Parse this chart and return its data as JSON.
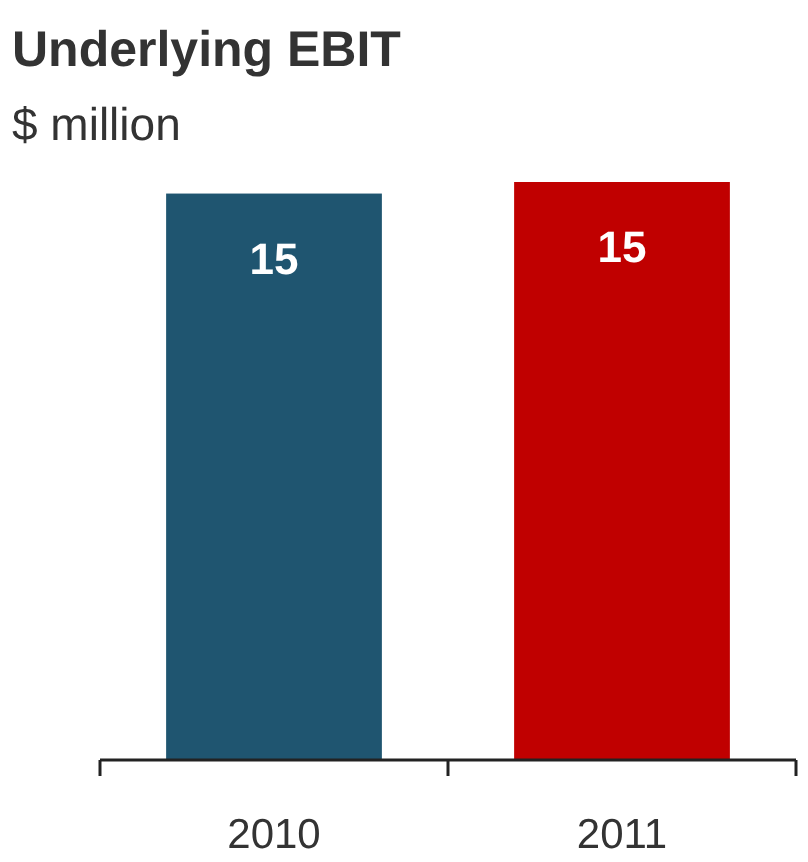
{
  "chart_data": {
    "type": "bar",
    "title": "Underlying EBIT",
    "subtitle": "$ million",
    "categories": [
      "2010",
      "2011"
    ],
    "values": [
      14.7,
      15
    ],
    "colors": [
      "#1f5570",
      "#c00000"
    ],
    "value_labels": [
      "15",
      "15"
    ]
  }
}
